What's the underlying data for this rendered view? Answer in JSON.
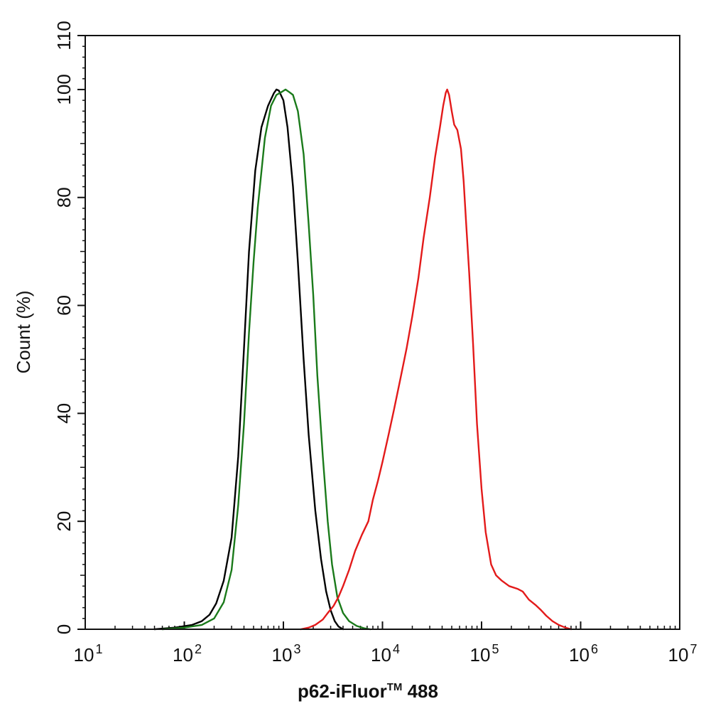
{
  "chart_data": {
    "type": "line",
    "title": "",
    "xlabel": "p62-iFluor",
    "xlabel_sup": "TM",
    "xlabel_suffix": " 488",
    "ylabel": "Count  (%)",
    "x_scale": "log",
    "xlim": [
      10,
      10000000
    ],
    "ylim": [
      0,
      110
    ],
    "x_ticks": [
      {
        "base": "10",
        "exp": "1",
        "value": 10
      },
      {
        "base": "10",
        "exp": "2",
        "value": 100
      },
      {
        "base": "10",
        "exp": "3",
        "value": 1000
      },
      {
        "base": "10",
        "exp": "4",
        "value": 10000
      },
      {
        "base": "10",
        "exp": "5",
        "value": 100000
      },
      {
        "base": "10",
        "exp": "6",
        "value": 1000000
      },
      {
        "base": "10",
        "exp": "7",
        "value": 10000000
      }
    ],
    "y_ticks": [
      {
        "label": "0",
        "value": 0
      },
      {
        "label": "20",
        "value": 20
      },
      {
        "label": "40",
        "value": 40
      },
      {
        "label": "60",
        "value": 60
      },
      {
        "label": "80",
        "value": 80
      },
      {
        "label": "100",
        "value": 100
      },
      {
        "label": "110",
        "value": 110
      }
    ],
    "grid": false,
    "legend": "none",
    "series": [
      {
        "color": "#000000",
        "points": [
          [
            50,
            0
          ],
          [
            80,
            0.3
          ],
          [
            120,
            0.8
          ],
          [
            150,
            1.5
          ],
          [
            180,
            2.7
          ],
          [
            210,
            4.8
          ],
          [
            250,
            9
          ],
          [
            300,
            17
          ],
          [
            350,
            32
          ],
          [
            400,
            52
          ],
          [
            450,
            70
          ],
          [
            520,
            85
          ],
          [
            600,
            93
          ],
          [
            700,
            97
          ],
          [
            800,
            99.3
          ],
          [
            850,
            100
          ],
          [
            900,
            99.8
          ],
          [
            1000,
            98
          ],
          [
            1100,
            93
          ],
          [
            1250,
            82
          ],
          [
            1400,
            68
          ],
          [
            1600,
            50
          ],
          [
            1800,
            36
          ],
          [
            2100,
            22
          ],
          [
            2400,
            13
          ],
          [
            2700,
            7
          ],
          [
            3000,
            3.5
          ],
          [
            3300,
            1.5
          ],
          [
            3600,
            0.5
          ],
          [
            4000,
            0
          ]
        ]
      },
      {
        "color": "#1a7a1a",
        "points": [
          [
            60,
            0
          ],
          [
            100,
            0.3
          ],
          [
            150,
            0.8
          ],
          [
            200,
            2
          ],
          [
            250,
            5
          ],
          [
            300,
            11
          ],
          [
            350,
            23
          ],
          [
            400,
            38
          ],
          [
            450,
            55
          ],
          [
            500,
            68
          ],
          [
            550,
            78
          ],
          [
            650,
            91
          ],
          [
            750,
            97
          ],
          [
            850,
            99
          ],
          [
            950,
            99.5
          ],
          [
            1050,
            100
          ],
          [
            1150,
            99.5
          ],
          [
            1250,
            99
          ],
          [
            1400,
            96
          ],
          [
            1600,
            88
          ],
          [
            1800,
            75
          ],
          [
            2000,
            62
          ],
          [
            2200,
            47
          ],
          [
            2500,
            32
          ],
          [
            2800,
            20
          ],
          [
            3100,
            12
          ],
          [
            3500,
            6
          ],
          [
            4000,
            3
          ],
          [
            4600,
            1.5
          ],
          [
            5500,
            0.6
          ],
          [
            6500,
            0.2
          ],
          [
            7500,
            0
          ]
        ]
      },
      {
        "color": "#e31a1a",
        "points": [
          [
            1500,
            0
          ],
          [
            1800,
            0.3
          ],
          [
            2100,
            0.8
          ],
          [
            2500,
            1.8
          ],
          [
            2800,
            3
          ],
          [
            3200,
            4.3
          ],
          [
            3600,
            6
          ],
          [
            4000,
            8
          ],
          [
            4600,
            11
          ],
          [
            5300,
            14.5
          ],
          [
            6200,
            17.5
          ],
          [
            7200,
            20
          ],
          [
            8000,
            24
          ],
          [
            9000,
            27.5
          ],
          [
            10000,
            31
          ],
          [
            11500,
            36
          ],
          [
            13000,
            40.5
          ],
          [
            15000,
            46
          ],
          [
            17500,
            52
          ],
          [
            20000,
            58
          ],
          [
            23000,
            65
          ],
          [
            26000,
            72.5
          ],
          [
            30000,
            80
          ],
          [
            34000,
            87.5
          ],
          [
            38000,
            93
          ],
          [
            41000,
            97
          ],
          [
            43500,
            99.4
          ],
          [
            45000,
            100
          ],
          [
            47000,
            99
          ],
          [
            50000,
            96
          ],
          [
            53000,
            93.5
          ],
          [
            57000,
            92.5
          ],
          [
            62000,
            89
          ],
          [
            66000,
            83
          ],
          [
            70000,
            75
          ],
          [
            75000,
            66
          ],
          [
            82000,
            53
          ],
          [
            90000,
            38
          ],
          [
            100000,
            26
          ],
          [
            110000,
            18
          ],
          [
            125000,
            12
          ],
          [
            140000,
            10
          ],
          [
            160000,
            9
          ],
          [
            190000,
            8
          ],
          [
            230000,
            7.5
          ],
          [
            260000,
            7
          ],
          [
            300000,
            5.5
          ],
          [
            350000,
            4.5
          ],
          [
            400000,
            3.5
          ],
          [
            450000,
            2.5
          ],
          [
            520000,
            1.5
          ],
          [
            600000,
            0.8
          ],
          [
            700000,
            0.3
          ],
          [
            800000,
            0
          ]
        ]
      }
    ]
  }
}
